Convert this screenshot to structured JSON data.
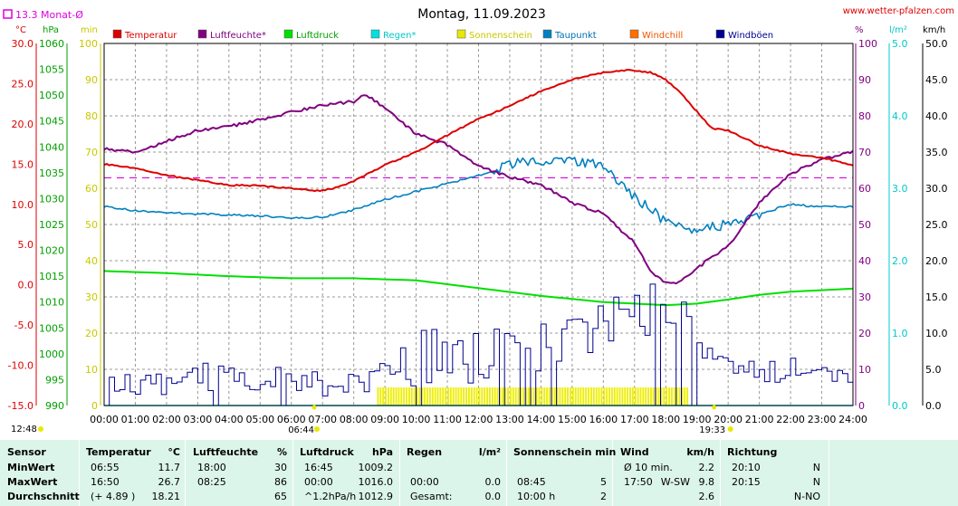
{
  "header": {
    "title": "Montag, 11.09.2023",
    "website": "www.wetter-pfalzen.com",
    "monthly_avg": "13.3 Monat-Ø"
  },
  "units": {
    "celsius": "°C",
    "hpa": "hPa",
    "min": "min",
    "percent": "%",
    "lm2": "l/m²",
    "kmh": "km/h"
  },
  "times": {
    "sunrise": "06:44",
    "sunset": "19:33",
    "now": "12:48"
  },
  "legend": [
    {
      "name": "Temperatur",
      "color": "#dd0000",
      "text_color": "#dd0000"
    },
    {
      "name": "Luftfeuchte*",
      "color": "#800080",
      "text_color": "#800080"
    },
    {
      "name": "Luftdruck",
      "color": "#00e000",
      "text_color": "#00a000"
    },
    {
      "name": "Regen*",
      "color": "#00e0e0",
      "text_color": "#00c8c8"
    },
    {
      "name": "Sonnenschein",
      "color": "#e8e800",
      "text_color": "#c8c800"
    },
    {
      "name": "Taupunkt",
      "color": "#0080c0",
      "text_color": "#0070b0"
    },
    {
      "name": "Windchill",
      "color": "#ff7000",
      "text_color": "#ee5500"
    },
    {
      "name": "Windböen",
      "color": "#000090",
      "text_color": "#000090"
    }
  ],
  "colors": {
    "temperature": "#dd0000",
    "humidity": "#800080",
    "pressure": "#00e000",
    "rain": "#00d8d8",
    "sunshine": "#eeee00",
    "dewpoint": "#0080c0",
    "gusts": "#000090",
    "monthly_avg": "#dd00dd",
    "table_bg": "#dcf5ea"
  },
  "chart_data": {
    "type": "line",
    "x_labels": [
      "00:00",
      "01:00",
      "02:00",
      "03:00",
      "04:00",
      "05:00",
      "06:00",
      "07:00",
      "08:00",
      "09:00",
      "10:00",
      "11:00",
      "12:00",
      "13:00",
      "14:00",
      "15:00",
      "16:00",
      "17:00",
      "18:00",
      "19:00",
      "20:00",
      "21:00",
      "22:00",
      "23:00",
      "24:00"
    ],
    "axes": {
      "celsius": {
        "range": [
          -15,
          30
        ],
        "ticks": [
          "30.0",
          "25.0",
          "20.0",
          "15.0",
          "10.0",
          "5.0",
          "0.0",
          "-5.0",
          "-10.0",
          "-15.0"
        ]
      },
      "hpa": {
        "range": [
          990,
          1060
        ],
        "ticks": [
          "1060",
          "1055",
          "1050",
          "1045",
          "1040",
          "1035",
          "1030",
          "1025",
          "1020",
          "1015",
          "1010",
          "1005",
          "1000",
          "995",
          "990"
        ]
      },
      "sun_min": {
        "range": [
          0,
          100
        ],
        "ticks": [
          "100",
          "90",
          "80",
          "70",
          "60",
          "50",
          "40",
          "30",
          "20",
          "10",
          "0"
        ]
      },
      "percent": {
        "range": [
          0,
          100
        ],
        "ticks": [
          "100",
          "90",
          "80",
          "70",
          "60",
          "50",
          "40",
          "30",
          "20",
          "10",
          "0"
        ]
      },
      "lm2": {
        "range": [
          0,
          5
        ],
        "ticks": [
          "5.0",
          "4.0",
          "3.0",
          "2.0",
          "1.0",
          "0.0"
        ]
      },
      "kmh": {
        "range": [
          0,
          50
        ],
        "ticks": [
          "50.0",
          "45.0",
          "40.0",
          "35.0",
          "30.0",
          "25.0",
          "20.0",
          "15.0",
          "10.0",
          "5.0",
          "0.0"
        ]
      }
    },
    "monthly_avg_celsius": 13.3,
    "series": [
      {
        "name": "Temperatur",
        "unit": "°C",
        "hours": [
          0,
          1,
          2,
          3,
          4,
          5,
          6,
          6.9,
          7.5,
          8,
          9,
          10,
          11,
          12,
          13,
          14,
          15,
          16,
          16.8,
          17.5,
          18,
          18.5,
          19,
          19.5,
          20,
          21,
          22,
          23,
          24
        ],
        "values": [
          15.0,
          14.5,
          13.6,
          13.0,
          12.4,
          12.3,
          12.0,
          11.7,
          12.1,
          12.9,
          14.9,
          16.5,
          18.6,
          20.6,
          22.2,
          24.1,
          25.5,
          26.4,
          26.7,
          26.4,
          25.5,
          23.8,
          21.5,
          19.4,
          19.2,
          17.3,
          16.3,
          15.8,
          14.9
        ]
      },
      {
        "name": "Luftfeuchte*",
        "unit": "%",
        "hours": [
          0,
          1,
          2,
          3,
          4,
          5,
          6,
          7,
          8,
          8.4,
          9,
          10,
          11,
          12,
          13,
          14,
          15,
          16,
          17,
          17.6,
          18,
          18.4,
          19,
          20,
          21,
          22,
          23,
          24
        ],
        "values": [
          71,
          70,
          73,
          76,
          77,
          79,
          81,
          83,
          84,
          86,
          82,
          75,
          72,
          66,
          63,
          61,
          56,
          53,
          45,
          36,
          34,
          34,
          38,
          44,
          56,
          64,
          68,
          70
        ]
      },
      {
        "name": "Luftdruck",
        "unit": "hPa",
        "hours": [
          0,
          2,
          4,
          6,
          8,
          10,
          12,
          14,
          16,
          17,
          18,
          19,
          20,
          21,
          22,
          23,
          24
        ],
        "values": [
          1016.0,
          1015.6,
          1015.0,
          1014.6,
          1014.6,
          1014.2,
          1012.7,
          1011.2,
          1010.0,
          1009.7,
          1009.4,
          1009.7,
          1010.5,
          1011.4,
          1012.0,
          1012.3,
          1012.6
        ]
      },
      {
        "name": "Taupunkt",
        "unit": "°C",
        "hours": [
          0,
          1,
          2,
          3,
          4,
          5,
          6,
          7,
          8,
          9,
          10,
          11,
          12,
          13,
          14,
          15,
          16,
          17,
          18,
          19,
          20,
          21,
          22,
          23,
          24
        ],
        "values": [
          9.8,
          9.2,
          9.0,
          8.8,
          8.7,
          8.6,
          8.3,
          8.4,
          9.3,
          10.6,
          11.6,
          12.6,
          13.6,
          15.0,
          15.3,
          15.5,
          14.8,
          11.0,
          7.8,
          6.8,
          7.5,
          8.8,
          10.0,
          9.7,
          9.7
        ]
      },
      {
        "name": "Windböen",
        "unit": "km/h",
        "hours": [
          0,
          1,
          2,
          3,
          4,
          5,
          6,
          7,
          8,
          9,
          10,
          11,
          12,
          13,
          14,
          15,
          16,
          17,
          17.3,
          17.6,
          18,
          18.4,
          18.7,
          19,
          19.5,
          20,
          21,
          22,
          23,
          24
        ],
        "values": [
          3,
          3,
          3,
          4,
          4,
          3,
          4,
          3,
          3,
          5,
          7,
          7,
          7,
          8,
          8,
          9,
          10,
          13,
          13,
          16,
          15,
          14,
          11,
          8,
          6,
          6,
          5,
          5,
          5,
          3
        ]
      },
      {
        "name": "Sonnenschein",
        "unit": "min",
        "hours": [
          8.75,
          18.75
        ],
        "values": [
          5,
          5
        ]
      },
      {
        "name": "Regen*",
        "unit": "l/m²",
        "hours": [
          0,
          24
        ],
        "values": [
          0.0,
          0.0
        ]
      }
    ]
  },
  "table": {
    "headers": [
      {
        "label": "Sensor",
        "unit": ""
      },
      {
        "label": "Temperatur",
        "unit": "°C"
      },
      {
        "label": "Luftfeuchte",
        "unit": "%"
      },
      {
        "label": "Luftdruck",
        "unit": "hPa"
      },
      {
        "label": "Regen",
        "unit": "l/m²"
      },
      {
        "label": "Sonnenschein min",
        "unit": ""
      },
      {
        "label": "Wind",
        "unit": "km/h"
      },
      {
        "label": "Richtung",
        "unit": ""
      }
    ],
    "rows": [
      {
        "label": "MinWert",
        "temp_time": "06:55",
        "temp_val": "11.7",
        "hum_time": "18:00",
        "hum_val": "30",
        "press_time": "16:45",
        "press_val": "1009.2",
        "rain_time": "",
        "rain_val": "",
        "sun_time": "",
        "sun_val": "",
        "wind_time": "Ø 10 min.",
        "wind_dir": "",
        "wind_val": "2.2",
        "dir_time": "20:10",
        "dir_val": "N"
      },
      {
        "label": "MaxWert",
        "temp_time": "16:50",
        "temp_val": "26.7",
        "hum_time": "08:25",
        "hum_val": "86",
        "press_time": "00:00",
        "press_val": "1016.0",
        "rain_time": "00:00",
        "rain_val": "0.0",
        "sun_time": "08:45",
        "sun_val": "5",
        "wind_time": "17:50",
        "wind_dir": "W-SW",
        "wind_val": "9.8",
        "dir_time": "20:15",
        "dir_val": "N"
      },
      {
        "label": "Durchschnitt",
        "temp_time": "(+ 4.89 )",
        "temp_val": "18.21",
        "hum_time": "",
        "hum_val": "65",
        "press_time": "^1.2hPa/h",
        "press_val": "1012.9",
        "rain_time": "Gesamt:",
        "rain_val": "0.0",
        "sun_time": "10:00 h",
        "sun_val": "2",
        "wind_time": "",
        "wind_dir": "",
        "wind_val": "2.6",
        "dir_time": "",
        "dir_val": "N-NO"
      }
    ]
  }
}
